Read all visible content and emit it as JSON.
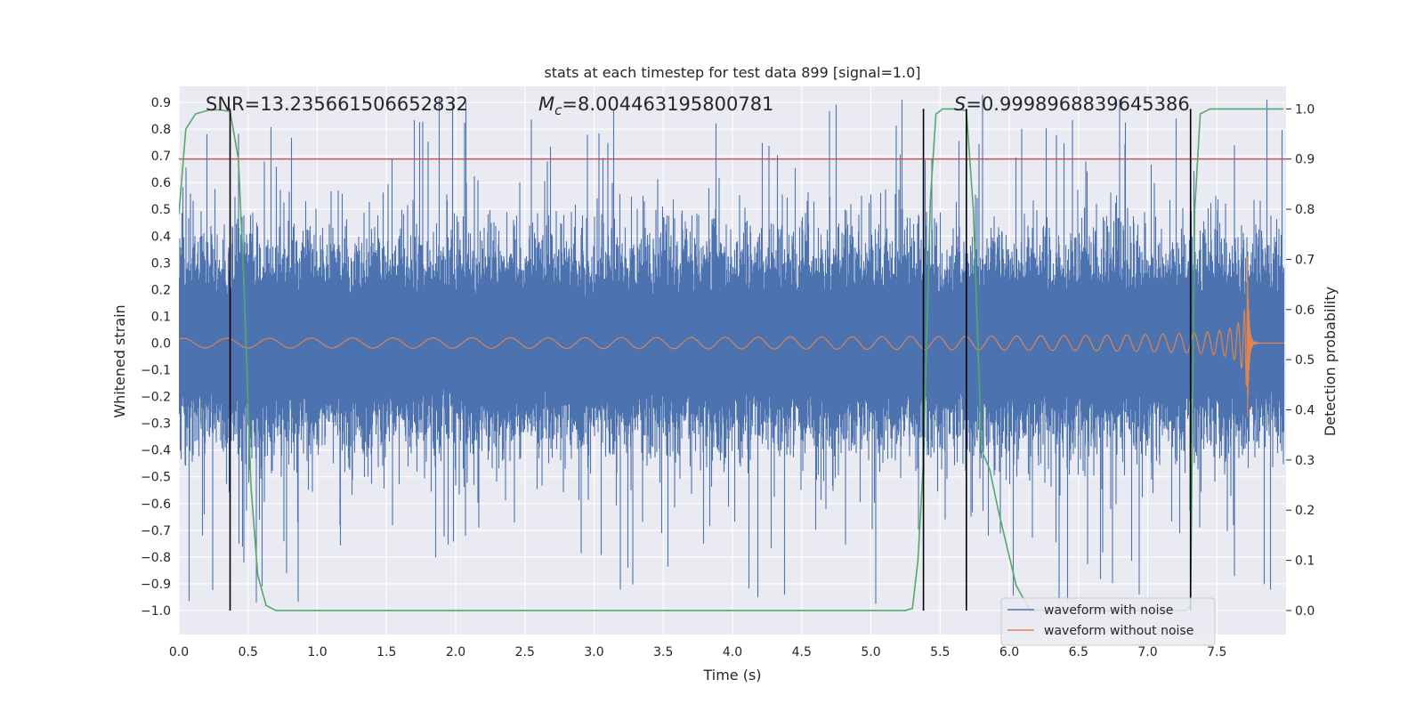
{
  "chart_data": {
    "type": "line",
    "title": "stats at each timestep for test data 899 [signal=1.0]",
    "xlabel": "Time (s)",
    "ylabel": "Whitened strain",
    "y2label": "Detection probability",
    "xlim": [
      0.0,
      8.0
    ],
    "ylim": [
      -1.09,
      0.96
    ],
    "y2lim": [
      -0.048,
      1.045
    ],
    "xticks": [
      0.0,
      0.5,
      1.0,
      1.5,
      2.0,
      2.5,
      3.0,
      3.5,
      4.0,
      4.5,
      5.0,
      5.5,
      6.0,
      6.5,
      7.0,
      7.5
    ],
    "xtick_labels": [
      "0.0",
      "0.5",
      "1.0",
      "1.5",
      "2.0",
      "2.5",
      "3.0",
      "3.5",
      "4.0",
      "4.5",
      "5.0",
      "5.5",
      "6.0",
      "6.5",
      "7.0",
      "7.5"
    ],
    "yticks": [
      0.9,
      0.8,
      0.7,
      0.6,
      0.5,
      0.4,
      0.3,
      0.2,
      0.1,
      0.0,
      -0.1,
      -0.2,
      -0.3,
      -0.4,
      -0.5,
      -0.6,
      -0.7,
      -0.8,
      -0.9,
      -1.0
    ],
    "ytick_labels": [
      "0.9",
      "0.8",
      "0.7",
      "0.6",
      "0.5",
      "0.4",
      "0.3",
      "0.2",
      "0.1",
      "0.0",
      "−0.1",
      "−0.2",
      "−0.3",
      "−0.4",
      "−0.5",
      "−0.6",
      "−0.7",
      "−0.8",
      "−0.9",
      "−1.0"
    ],
    "y2ticks": [
      0.0,
      0.1,
      0.2,
      0.3,
      0.4,
      0.5,
      0.6,
      0.7,
      0.8,
      0.9,
      1.0
    ],
    "y2tick_labels": [
      "0.0",
      "0.1",
      "0.2",
      "0.3",
      "0.4",
      "0.5",
      "0.6",
      "0.7",
      "0.8",
      "0.9",
      "1.0"
    ],
    "annotations": {
      "snr": "SNR=13.235661506652832",
      "mc_symbol": "M",
      "mc_sub": "c",
      "mc_value": "=8.004463195800781",
      "s_symbol": "S",
      "s_value": "=0.9998968839645386"
    },
    "threshold": 0.9,
    "vertical_lines": [
      0.37,
      5.38,
      5.69,
      7.31
    ],
    "detection_probability": {
      "t": [
        0.0,
        0.05,
        0.12,
        0.22,
        0.3,
        0.37,
        0.43,
        0.47,
        0.52,
        0.57,
        0.63,
        0.7,
        1.0,
        2.0,
        3.0,
        4.0,
        5.0,
        5.25,
        5.3,
        5.34,
        5.38,
        5.43,
        5.47,
        5.52,
        5.6,
        5.69,
        5.74,
        5.8,
        5.86,
        5.92,
        6.05,
        6.15,
        6.22,
        7.28,
        7.31,
        7.34,
        7.38,
        7.45,
        7.5,
        7.98
      ],
      "p": [
        0.79,
        0.96,
        0.99,
        0.998,
        0.998,
        0.995,
        0.9,
        0.65,
        0.25,
        0.07,
        0.01,
        0.0,
        0.0,
        0.0,
        0.0,
        0.0,
        0.0,
        0.0,
        0.004,
        0.1,
        0.3,
        0.82,
        0.99,
        1.0,
        1.0,
        0.997,
        0.8,
        0.32,
        0.28,
        0.2,
        0.05,
        0.0,
        0.0,
        0.0,
        0.01,
        0.8,
        0.99,
        1.0,
        1.0,
        1.0
      ]
    },
    "series": [
      {
        "name": "waveform with noise",
        "color": "#4c72b0",
        "amplitude_typical": 0.28,
        "amplitude_peak": 0.98
      },
      {
        "name": "waveform without noise",
        "color": "#dd8452",
        "amplitude_start": 0.018,
        "amplitude_peak": 0.35,
        "merger_time": 7.72
      },
      {
        "name": "detection probability",
        "color": "#55a868",
        "axis": "right"
      },
      {
        "name": "threshold",
        "color": "#c44e52",
        "axis": "right"
      }
    ],
    "legend": {
      "placement": "lower-right",
      "entries": [
        "waveform with noise",
        "waveform without noise"
      ]
    }
  }
}
